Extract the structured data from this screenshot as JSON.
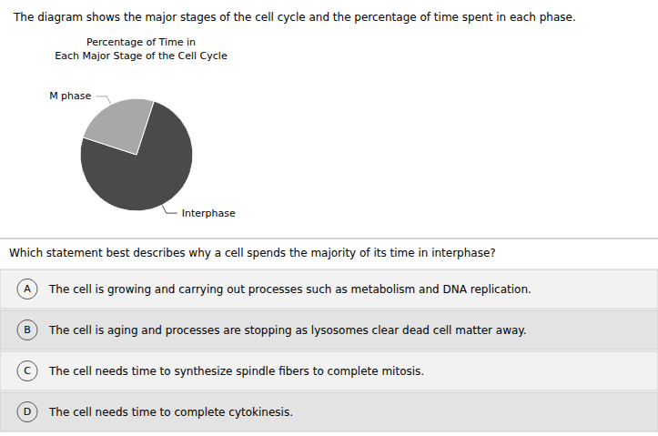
{
  "chart_data": {
    "type": "pie",
    "title": "The diagram shows the major stages of the cell cycle and the percentage of time spent in each phase.",
    "subtitle": [
      "Percentage of Time in",
      "Each Major Stage of the Cell Cycle"
    ],
    "categories": [
      "Interphase",
      "M phase"
    ],
    "values": [
      75,
      25
    ],
    "colors": [
      "#4a4a4a",
      "#a8a8a8"
    ],
    "annotations": [
      {
        "text": "Which statement best describes why a cell spends the majority of its time in interphase?"
      },
      {
        "label": "A",
        "text": "The cell is growing and carrying out processes such as metabolism and DNA replication."
      },
      {
        "label": "B",
        "text": "The cell is aging and processes are stopping as lysosomes clear dead cell matter away."
      },
      {
        "label": "C",
        "text": "The cell needs time to synthesize spindle fibers to complete mitosis."
      },
      {
        "label": "D",
        "text": "The cell needs time to complete cytokinesis."
      }
    ]
  }
}
